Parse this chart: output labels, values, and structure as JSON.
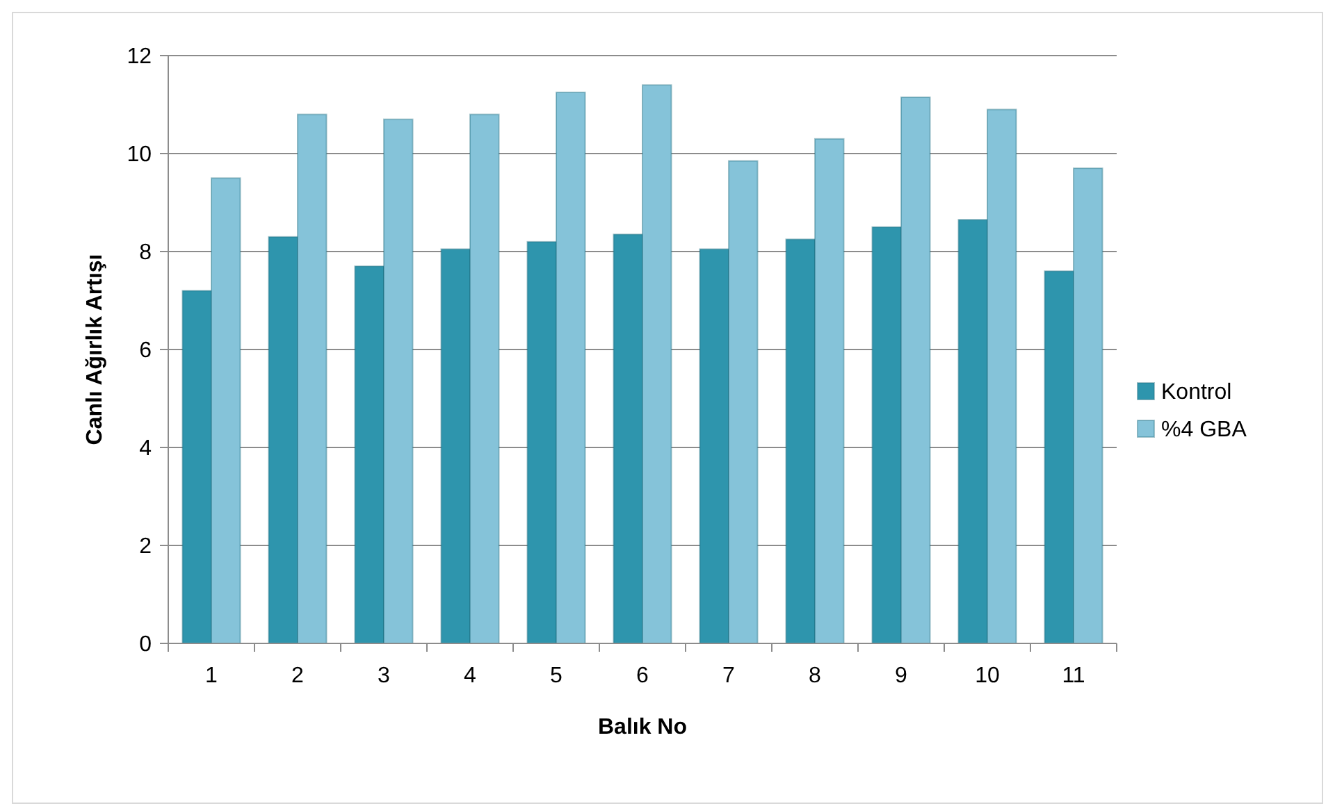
{
  "chart_data": {
    "type": "bar",
    "xlabel": "Balık No",
    "ylabel": "Canlı Ağırlık Artışı",
    "categories": [
      "1",
      "2",
      "3",
      "4",
      "5",
      "6",
      "7",
      "8",
      "9",
      "10",
      "11"
    ],
    "series": [
      {
        "name": "Kontrol",
        "color": "#2e95ad",
        "values": [
          7.2,
          8.3,
          7.7,
          8.05,
          8.2,
          8.35,
          8.05,
          8.25,
          8.5,
          8.65,
          7.6
        ]
      },
      {
        "name": "%4 GBA",
        "color": "#85c3d9",
        "values": [
          9.5,
          10.8,
          10.7,
          10.8,
          11.25,
          11.4,
          9.85,
          10.3,
          11.15,
          10.9,
          9.7
        ]
      }
    ],
    "ylim": [
      0,
      12
    ],
    "yticks": [
      0,
      2,
      4,
      6,
      8,
      10,
      12
    ],
    "grid": "y",
    "legend": "right"
  }
}
